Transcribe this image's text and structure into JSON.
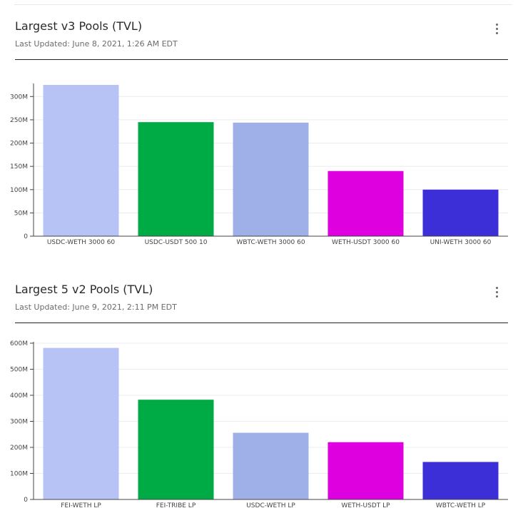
{
  "panels": [
    {
      "title": "Largest v3 Pools (TVL)",
      "subtitle": "Last Updated: June 8, 2021, 1:26 AM EDT",
      "more_icon": "more-vertical-icon"
    },
    {
      "title": "Largest 5 v2 Pools (TVL)",
      "subtitle": "Last Updated: June 9, 2021, 2:11 PM EDT",
      "more_icon": "more-vertical-icon"
    }
  ],
  "chart_data": [
    {
      "type": "bar",
      "title": "Largest v3 Pools (TVL)",
      "categories": [
        "USDC-WETH 3000 60",
        "USDC-USDT 500 10",
        "WBTC-WETH 3000 60",
        "WETH-USDT 3000 60",
        "UNI-WETH 3000 60"
      ],
      "values": [
        325000000,
        245000000,
        244000000,
        140000000,
        100000000
      ],
      "colors": [
        "#b8c3f5",
        "#00aa45",
        "#9fb0e9",
        "#de00de",
        "#3c2fd8"
      ],
      "yticks": [
        0,
        50000000,
        100000000,
        150000000,
        200000000,
        250000000,
        300000000
      ],
      "ytick_labels": [
        "0",
        "50M",
        "100M",
        "150M",
        "200M",
        "250M",
        "300M"
      ],
      "ylim": [
        0,
        325000000
      ],
      "grid": true
    },
    {
      "type": "bar",
      "title": "Largest 5 v2 Pools (TVL)",
      "categories": [
        "FEI-WETH LP",
        "FEI-TRIBE LP",
        "USDC-WETH LP",
        "WETH-USDT LP",
        "WBTC-WETH LP"
      ],
      "values": [
        582000000,
        383000000,
        256000000,
        220000000,
        144000000
      ],
      "colors": [
        "#b8c3f5",
        "#00aa45",
        "#9fb0e9",
        "#de00de",
        "#3c2fd8"
      ],
      "yticks": [
        0,
        100000000,
        200000000,
        300000000,
        400000000,
        500000000,
        600000000
      ],
      "ytick_labels": [
        "0",
        "100M",
        "200M",
        "300M",
        "400M",
        "500M",
        "600M"
      ],
      "ylim": [
        0,
        600000000
      ],
      "grid": true
    }
  ]
}
